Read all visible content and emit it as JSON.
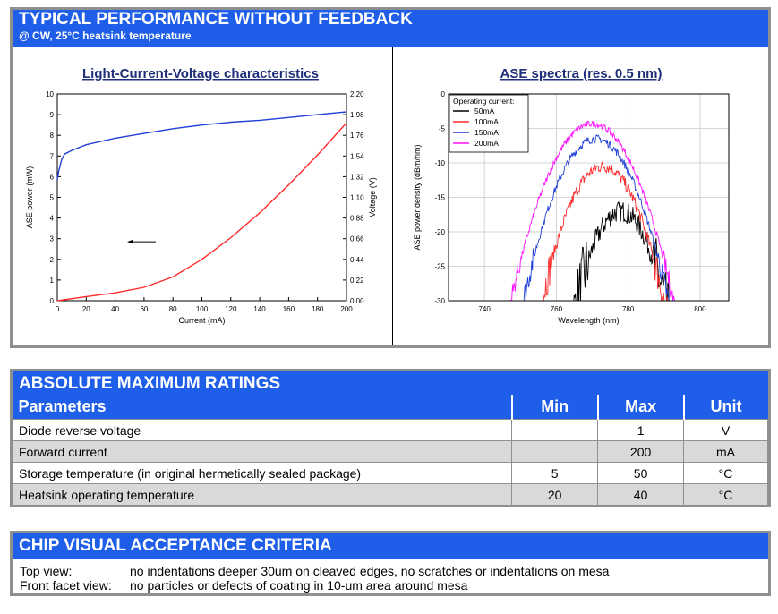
{
  "performance": {
    "title": "TYPICAL PERFORMANCE WITHOUT FEEDBACK",
    "subtitle": "@ CW, 25°C heatsink temperature"
  },
  "chart_data": [
    {
      "type": "line",
      "title": "Light-Current-Voltage characteristics",
      "xlabel": "Current (mA)",
      "ylabel": "ASE power (mW)",
      "y2label": "Voltage (V)",
      "xlim": [
        0,
        200
      ],
      "ylim": [
        0,
        10
      ],
      "y2lim": [
        0,
        2.2
      ],
      "x_ticks": [
        0,
        20,
        40,
        60,
        80,
        100,
        120,
        140,
        160,
        180,
        200
      ],
      "y_ticks": [
        0,
        1,
        2,
        3,
        4,
        5,
        6,
        7,
        8,
        9,
        10
      ],
      "y2_ticks": [
        "0.00",
        "0.22",
        "0.44",
        "0.66",
        "0.88",
        "1.10",
        "1.32",
        "1.54",
        "1.76",
        "1.98",
        "2.20"
      ],
      "series": [
        {
          "axis": "left",
          "color": "#ff2a2a",
          "x": [
            0,
            20,
            40,
            60,
            80,
            100,
            120,
            140,
            160,
            180,
            200
          ],
          "values": [
            0,
            0.2,
            0.38,
            0.65,
            1.15,
            2.0,
            3.05,
            4.25,
            5.6,
            7.05,
            8.6
          ]
        },
        {
          "axis": "right",
          "color": "#1f3fd8",
          "x": [
            0,
            1,
            3,
            5,
            10,
            20,
            40,
            60,
            80,
            100,
            120,
            140,
            160,
            180,
            200
          ],
          "values": [
            1.29,
            1.38,
            1.5,
            1.56,
            1.6,
            1.66,
            1.73,
            1.78,
            1.83,
            1.87,
            1.9,
            1.92,
            1.95,
            1.98,
            2.01
          ]
        }
      ]
    },
    {
      "type": "line",
      "title": "ASE spectra (res. 0.5 nm)",
      "xlabel": "Wavelength (nm)",
      "ylabel": "ASE power density (dBm/nm)",
      "xlim": [
        730,
        808
      ],
      "ylim": [
        -30,
        0
      ],
      "x_ticks": [
        740,
        760,
        780,
        800
      ],
      "y_ticks": [
        0,
        -5,
        -10,
        -15,
        -20,
        -25,
        -30
      ],
      "grid": true,
      "legend": {
        "title": "Operating current:",
        "placement": "top-left"
      },
      "series": [
        {
          "name": "50mA",
          "color": "#000000",
          "center": 778,
          "peak": -17,
          "width": 11,
          "start": 741,
          "end": 798,
          "noise": 1.6
        },
        {
          "name": "100mA",
          "color": "#ff2a2a",
          "center": 773,
          "peak": -10.5,
          "width": 12.5,
          "start": 738,
          "end": 802,
          "noise": 0.9
        },
        {
          "name": "150mA",
          "color": "#1f3fd8",
          "center": 771,
          "peak": -6.5,
          "width": 13.5,
          "start": 733,
          "end": 803,
          "noise": 0.6
        },
        {
          "name": "200mA",
          "color": "#ff10ff",
          "center": 770,
          "peak": -4.3,
          "width": 14.5,
          "start": 730,
          "end": 806,
          "noise": 0.5
        }
      ]
    }
  ],
  "ratings": {
    "title": "ABSOLUTE MAXIMUM RATINGS",
    "header": {
      "param": "Parameters",
      "min": "Min",
      "max": "Max",
      "unit": "Unit"
    },
    "rows": [
      {
        "param": "Diode reverse voltage",
        "min": "",
        "max": "1",
        "unit": "V"
      },
      {
        "param": "Forward current",
        "min": "",
        "max": "200",
        "unit": "mA"
      },
      {
        "param": "Storage temperature (in original hermetically sealed package)",
        "min": "5",
        "max": "50",
        "unit": "°C"
      },
      {
        "param": "Heatsink operating temperature",
        "min": "20",
        "max": "40",
        "unit": "°C"
      }
    ]
  },
  "chip": {
    "title": "CHIP VISUAL ACCEPTANCE CRITERIA",
    "rows": [
      {
        "label": "Top view:",
        "text": "no indentations deeper 30um on cleaved edges, no scratches or indentations on mesa"
      },
      {
        "label": "Front facet view:",
        "text": "no particles or defects of coating in 10-um area around mesa"
      }
    ]
  }
}
